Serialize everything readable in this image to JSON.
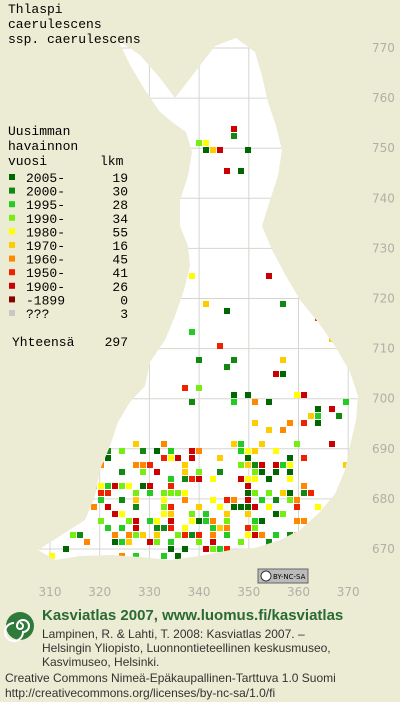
{
  "title": {
    "lines": [
      "Thlaspi",
      "caerulescens",
      "ssp. caerulescens"
    ]
  },
  "legend": {
    "header": [
      "Uusimman",
      "havainnon",
      "vuosi"
    ],
    "count_header": "lkm",
    "entries": [
      {
        "label": "2005-",
        "count": 19,
        "color": "#006600"
      },
      {
        "label": "2000-",
        "count": 30,
        "color": "#118811"
      },
      {
        "label": "1995-",
        "count": 28,
        "color": "#22cc22"
      },
      {
        "label": "1990-",
        "count": 34,
        "color": "#77ee11"
      },
      {
        "label": "1980-",
        "count": 55,
        "color": "#ffff00"
      },
      {
        "label": "1970-",
        "count": 16,
        "color": "#ffcc00"
      },
      {
        "label": "1960-",
        "count": 45,
        "color": "#ff8800"
      },
      {
        "label": "1950-",
        "count": 41,
        "color": "#ee2200"
      },
      {
        "label": "1900-",
        "count": 26,
        "color": "#cc0000"
      },
      {
        "label": "-1899",
        "count": 0,
        "color": "#880000"
      },
      {
        "label": "???",
        "count": 3,
        "color": "#c8c8c8"
      }
    ],
    "total_label": "Yhteensä",
    "total": 297
  },
  "grid": {
    "y_labels": [
      770,
      760,
      750,
      740,
      730,
      720,
      710,
      700,
      690,
      680,
      670
    ],
    "x_labels": [
      310,
      320,
      330,
      340,
      350,
      360,
      370
    ]
  },
  "badge": "BY-NC-SA",
  "footer": {
    "heading": "Kasviatlas 2007, www.luomus.fi/kasviatlas",
    "citation": [
      "Lampinen, R. & Lahti, T. 2008: Kasviatlas 2007. –",
      "Helsingin Yliopisto, Luonnontieteellinen keskusmuseo,",
      "Kasvimuseo, Helsinki."
    ],
    "license": [
      "Creative Commons Nimeä-Epäkaupallinen-Tarttuva 1.0 Suomi",
      "http://creativecommons.org/licenses/by-nc-sa/1.0/fi"
    ]
  }
}
